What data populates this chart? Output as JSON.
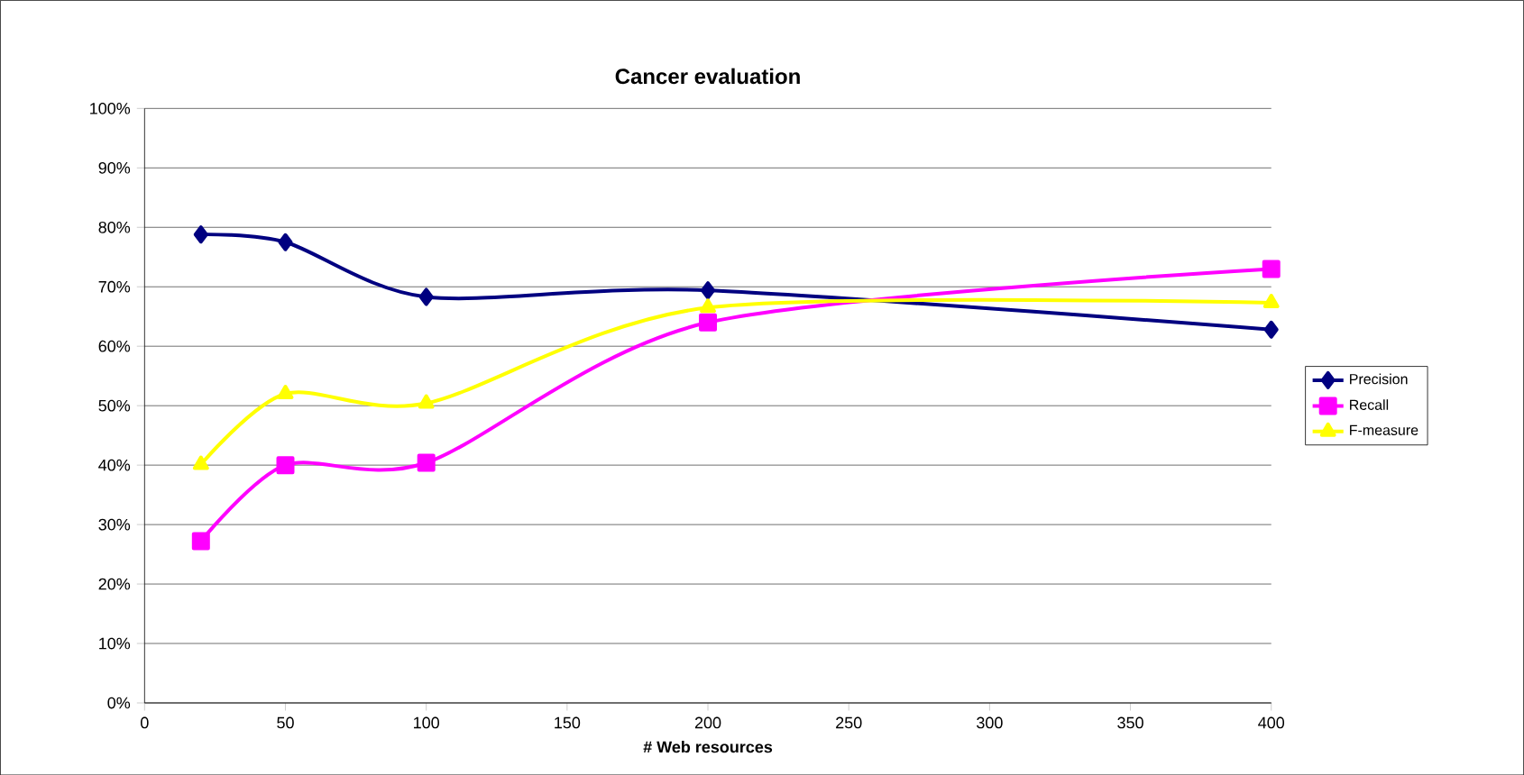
{
  "chart_data": {
    "type": "line",
    "title": "Cancer evaluation",
    "xlabel": "# Web resources",
    "x": [
      20,
      50,
      100,
      200,
      400
    ],
    "series": [
      {
        "name": "Precision",
        "color": "#000080",
        "marker": "diamond",
        "values": [
          78.8,
          77.5,
          68.3,
          69.4,
          62.8
        ]
      },
      {
        "name": "Recall",
        "color": "#ff00ff",
        "marker": "square",
        "values": [
          27.2,
          40,
          40.4,
          64,
          73
        ]
      },
      {
        "name": "F-measure",
        "color": "#ffff00",
        "marker": "triangle",
        "values": [
          40.1,
          52,
          50.4,
          66.5,
          67.3
        ]
      }
    ],
    "xlim": [
      0,
      400
    ],
    "xticks": [
      0,
      50,
      100,
      150,
      200,
      250,
      300,
      350,
      400
    ],
    "ylim": [
      0,
      100
    ],
    "yticks": [
      {
        "value": 0,
        "label": "0%"
      },
      {
        "value": 10,
        "label": "10%"
      },
      {
        "value": 20,
        "label": "20%"
      },
      {
        "value": 30,
        "label": "30%"
      },
      {
        "value": 40,
        "label": "40%"
      },
      {
        "value": 50,
        "label": "50%"
      },
      {
        "value": 60,
        "label": "60%"
      },
      {
        "value": 70,
        "label": "70%"
      },
      {
        "value": 80,
        "label": "80%"
      },
      {
        "value": 90,
        "label": "90%"
      },
      {
        "value": 100,
        "label": "100%"
      }
    ],
    "grid": "y",
    "legend": "right",
    "line_style": "solid"
  }
}
